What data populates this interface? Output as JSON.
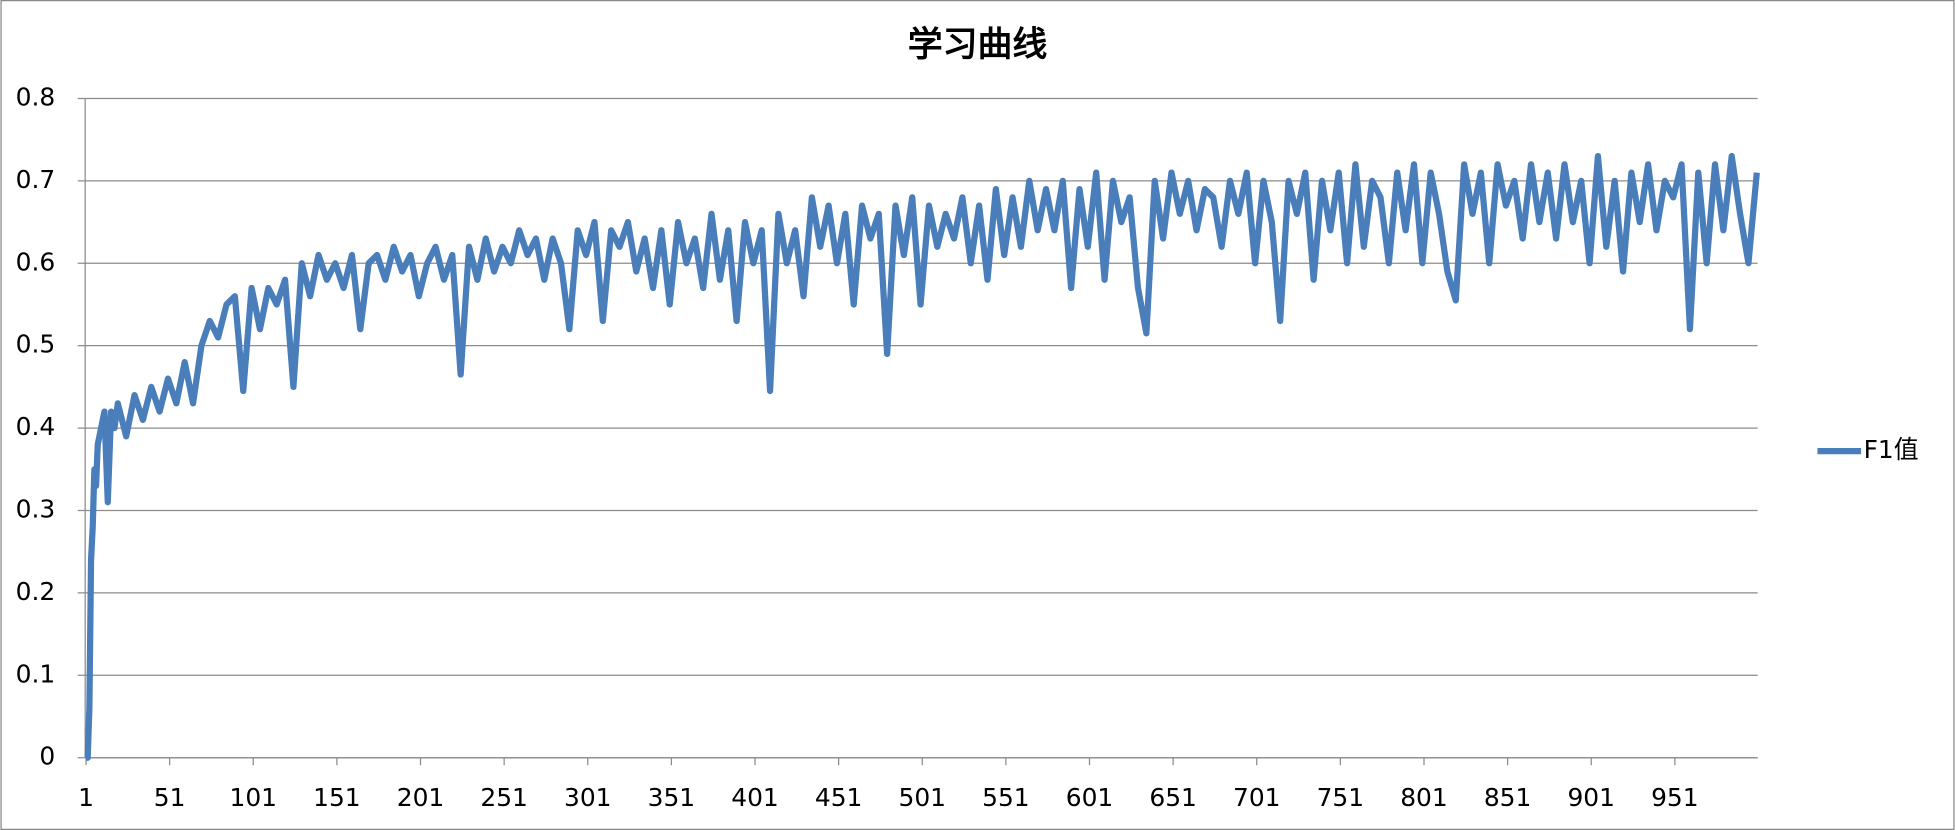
{
  "chart_data": {
    "type": "line",
    "title": "学习曲线",
    "x": [
      1,
      2,
      3,
      4,
      5,
      6,
      7,
      8,
      10,
      12,
      14,
      16,
      18,
      20,
      25,
      30,
      35,
      40,
      45,
      50,
      55,
      60,
      65,
      70,
      75,
      80,
      85,
      90,
      95,
      100,
      105,
      110,
      115,
      120,
      125,
      130,
      135,
      140,
      145,
      150,
      155,
      160,
      165,
      170,
      175,
      180,
      185,
      190,
      195,
      200,
      205,
      210,
      215,
      220,
      225,
      230,
      235,
      240,
      245,
      250,
      255,
      260,
      265,
      270,
      275,
      280,
      285,
      290,
      295,
      300,
      305,
      310,
      315,
      320,
      325,
      330,
      335,
      340,
      345,
      350,
      355,
      360,
      365,
      370,
      375,
      380,
      385,
      390,
      395,
      400,
      405,
      410,
      415,
      420,
      425,
      430,
      435,
      440,
      445,
      450,
      455,
      460,
      465,
      470,
      475,
      480,
      485,
      490,
      495,
      500,
      505,
      510,
      515,
      520,
      525,
      530,
      535,
      540,
      545,
      550,
      555,
      560,
      565,
      570,
      575,
      580,
      585,
      590,
      595,
      600,
      605,
      610,
      615,
      620,
      625,
      630,
      635,
      640,
      645,
      650,
      655,
      660,
      665,
      670,
      675,
      680,
      685,
      690,
      695,
      700,
      705,
      710,
      715,
      720,
      725,
      730,
      735,
      740,
      745,
      750,
      755,
      760,
      765,
      770,
      775,
      780,
      785,
      790,
      795,
      800,
      805,
      810,
      815,
      820,
      825,
      830,
      835,
      840,
      845,
      850,
      855,
      860,
      865,
      870,
      875,
      880,
      885,
      890,
      895,
      900,
      905,
      910,
      915,
      920,
      925,
      930,
      935,
      940,
      945,
      950,
      955,
      960,
      965,
      970,
      975,
      980,
      985,
      990,
      995,
      1000
    ],
    "series": [
      {
        "name": "F1值",
        "color": "#4a7ebb",
        "values": [
          0,
          0,
          0.06,
          0.24,
          0.28,
          0.35,
          0.33,
          0.38,
          0.4,
          0.42,
          0.31,
          0.42,
          0.4,
          0.43,
          0.39,
          0.44,
          0.41,
          0.45,
          0.42,
          0.46,
          0.43,
          0.48,
          0.43,
          0.5,
          0.53,
          0.51,
          0.55,
          0.56,
          0.445,
          0.57,
          0.52,
          0.57,
          0.55,
          0.58,
          0.45,
          0.6,
          0.56,
          0.61,
          0.58,
          0.6,
          0.57,
          0.61,
          0.52,
          0.6,
          0.61,
          0.58,
          0.62,
          0.59,
          0.61,
          0.56,
          0.6,
          0.62,
          0.58,
          0.61,
          0.465,
          0.62,
          0.58,
          0.63,
          0.59,
          0.62,
          0.6,
          0.64,
          0.61,
          0.63,
          0.58,
          0.63,
          0.6,
          0.52,
          0.64,
          0.61,
          0.65,
          0.53,
          0.64,
          0.62,
          0.65,
          0.59,
          0.63,
          0.57,
          0.64,
          0.55,
          0.65,
          0.6,
          0.63,
          0.57,
          0.66,
          0.58,
          0.64,
          0.53,
          0.65,
          0.6,
          0.64,
          0.445,
          0.66,
          0.6,
          0.64,
          0.56,
          0.68,
          0.62,
          0.67,
          0.6,
          0.66,
          0.55,
          0.67,
          0.63,
          0.66,
          0.49,
          0.67,
          0.61,
          0.68,
          0.55,
          0.67,
          0.62,
          0.66,
          0.63,
          0.68,
          0.6,
          0.67,
          0.58,
          0.69,
          0.61,
          0.68,
          0.62,
          0.7,
          0.64,
          0.69,
          0.64,
          0.7,
          0.57,
          0.69,
          0.62,
          0.71,
          0.58,
          0.7,
          0.65,
          0.68,
          0.57,
          0.515,
          0.7,
          0.63,
          0.71,
          0.66,
          0.7,
          0.64,
          0.69,
          0.68,
          0.62,
          0.7,
          0.66,
          0.71,
          0.6,
          0.7,
          0.65,
          0.53,
          0.7,
          0.66,
          0.71,
          0.58,
          0.7,
          0.64,
          0.71,
          0.6,
          0.72,
          0.62,
          0.7,
          0.68,
          0.6,
          0.71,
          0.64,
          0.72,
          0.6,
          0.71,
          0.66,
          0.59,
          0.555,
          0.72,
          0.66,
          0.71,
          0.6,
          0.72,
          0.67,
          0.7,
          0.63,
          0.72,
          0.65,
          0.71,
          0.63,
          0.72,
          0.65,
          0.7,
          0.6,
          0.73,
          0.62,
          0.7,
          0.59,
          0.71,
          0.65,
          0.72,
          0.64,
          0.7,
          0.68,
          0.72,
          0.52,
          0.71,
          0.6,
          0.72,
          0.64,
          0.73,
          0.66,
          0.6,
          0.71
        ]
      }
    ],
    "xlim": [
      0.5,
      1000.5
    ],
    "xticks": [
      1,
      51,
      101,
      151,
      201,
      251,
      301,
      351,
      401,
      451,
      501,
      551,
      601,
      651,
      701,
      751,
      801,
      851,
      901,
      951
    ],
    "ylim": [
      0,
      0.8
    ],
    "yticks": [
      0,
      0.1,
      0.2,
      0.3,
      0.4,
      0.5,
      0.6,
      0.7,
      0.8
    ],
    "grid": true,
    "legend": "right"
  }
}
